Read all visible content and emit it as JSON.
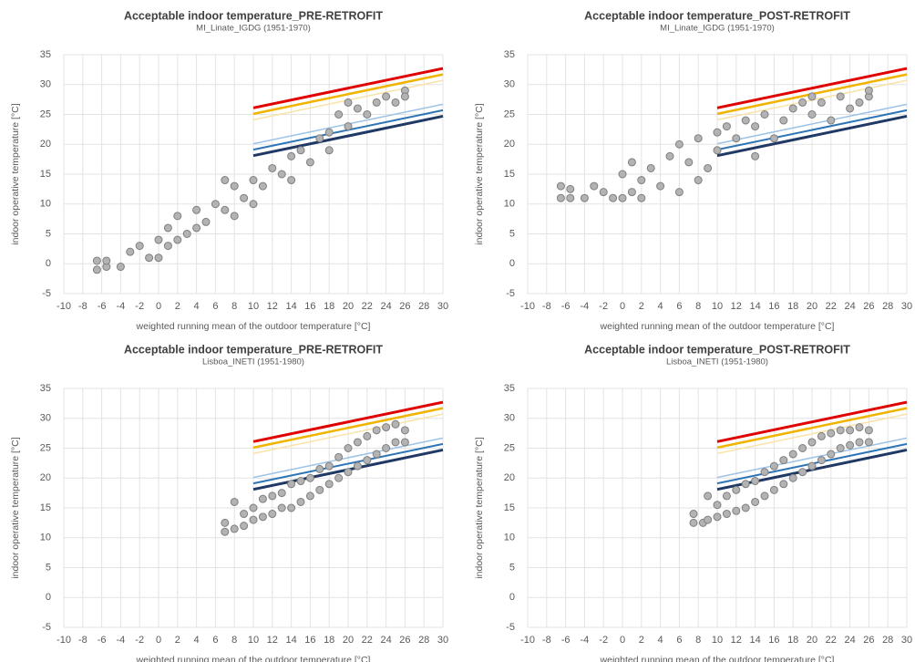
{
  "chart_data": [
    {
      "type": "scatter",
      "title": "Acceptable indoor temperature_PRE-RETROFIT",
      "subtitle": "MI_Linate_IGDG (1951-1970)",
      "x_label": "weighted running mean of the outdoor temperature [°C]",
      "y_label": "indoor operative temperature [°C]",
      "xlim": [
        -10,
        30
      ],
      "ylim": [
        -5,
        35
      ],
      "xticks": [
        -10,
        -8,
        -6,
        -4,
        -2,
        0,
        2,
        4,
        6,
        8,
        10,
        12,
        14,
        16,
        18,
        20,
        22,
        24,
        26,
        28,
        30
      ],
      "yticks": [
        -5,
        0,
        5,
        10,
        15,
        20,
        25,
        30,
        35
      ],
      "grid": true,
      "points": {
        "color": "#b3b3b3",
        "x": [
          -6.5,
          -6.5,
          -5.5,
          -5.5,
          -4,
          -3,
          -2,
          -1,
          0,
          0,
          1,
          1,
          2,
          2,
          3,
          4,
          4,
          5,
          6,
          7,
          7,
          8,
          8,
          9,
          10,
          10,
          11,
          12,
          13,
          14,
          14,
          15,
          16,
          17,
          18,
          18,
          19,
          20,
          20,
          21,
          22,
          23,
          24,
          25,
          26,
          26
        ],
        "values": [
          -1,
          0.5,
          -0.5,
          0.5,
          -0.5,
          2,
          3,
          1,
          4,
          1,
          6,
          3,
          8,
          4,
          5,
          9,
          6,
          7,
          10,
          14,
          9,
          13,
          8,
          11,
          14,
          10,
          13,
          16,
          15,
          18,
          14,
          19,
          17,
          21,
          22,
          19,
          25,
          27,
          23,
          26,
          25,
          27,
          28,
          27,
          29,
          28
        ]
      },
      "lines": [
        {
          "color": "#f8e3a8",
          "x": [
            10,
            30
          ],
          "values": [
            24.1,
            30.7
          ]
        },
        {
          "color": "#f0b400",
          "x": [
            10,
            30
          ],
          "values": [
            25.1,
            31.7
          ]
        },
        {
          "color": "#e00000",
          "x": [
            10,
            30
          ],
          "values": [
            26.1,
            32.7
          ]
        },
        {
          "color": "#9dc3e6",
          "x": [
            10,
            30
          ],
          "values": [
            20.1,
            26.7
          ]
        },
        {
          "color": "#2e75b6",
          "x": [
            10,
            30
          ],
          "values": [
            19.1,
            25.7
          ]
        },
        {
          "color": "#1f3864",
          "x": [
            10,
            30
          ],
          "values": [
            18.1,
            24.7
          ]
        }
      ]
    },
    {
      "type": "scatter",
      "title": "Acceptable indoor temperature_POST-RETROFIT",
      "subtitle": "MI_Linate_IGDG (1951-1970)",
      "x_label": "weighted running mean of the outdoor temperature [°C]",
      "y_label": "indoor operative temperature [°C]",
      "xlim": [
        -10,
        30
      ],
      "ylim": [
        -5,
        35
      ],
      "xticks": [
        -10,
        -8,
        -6,
        -4,
        -2,
        0,
        2,
        4,
        6,
        8,
        10,
        12,
        14,
        16,
        18,
        20,
        22,
        24,
        26,
        28,
        30
      ],
      "yticks": [
        -5,
        0,
        5,
        10,
        15,
        20,
        25,
        30,
        35
      ],
      "grid": true,
      "points": {
        "color": "#b3b3b3",
        "x": [
          -6.5,
          -6.5,
          -5.5,
          -5.5,
          -4,
          -3,
          -2,
          -1,
          0,
          0,
          1,
          1,
          2,
          2,
          3,
          4,
          5,
          6,
          6,
          7,
          8,
          8,
          9,
          10,
          10,
          11,
          12,
          13,
          14,
          14,
          15,
          16,
          17,
          18,
          19,
          20,
          20,
          21,
          22,
          23,
          24,
          25,
          26,
          26
        ],
        "values": [
          11,
          13,
          11,
          12.5,
          11,
          13,
          12,
          11,
          15,
          11,
          17,
          12,
          14,
          11,
          16,
          13,
          18,
          20,
          12,
          17,
          21,
          14,
          16,
          22,
          19,
          23,
          21,
          24,
          23,
          18,
          25,
          21,
          24,
          26,
          27,
          28,
          25,
          27,
          24,
          28,
          26,
          27,
          28,
          29
        ]
      },
      "lines": [
        {
          "color": "#f8e3a8",
          "x": [
            10,
            30
          ],
          "values": [
            24.1,
            30.7
          ]
        },
        {
          "color": "#f0b400",
          "x": [
            10,
            30
          ],
          "values": [
            25.1,
            31.7
          ]
        },
        {
          "color": "#e00000",
          "x": [
            10,
            30
          ],
          "values": [
            26.1,
            32.7
          ]
        },
        {
          "color": "#9dc3e6",
          "x": [
            10,
            30
          ],
          "values": [
            20.1,
            26.7
          ]
        },
        {
          "color": "#2e75b6",
          "x": [
            10,
            30
          ],
          "values": [
            19.1,
            25.7
          ]
        },
        {
          "color": "#1f3864",
          "x": [
            10,
            30
          ],
          "values": [
            18.1,
            24.7
          ]
        }
      ]
    },
    {
      "type": "scatter",
      "title": "Acceptable indoor temperature_PRE-RETROFIT",
      "subtitle": "Lisboa_INETI (1951-1980)",
      "x_label": "weighted running mean of the outdoor temperature [°C]",
      "y_label": "indoor operative temperature [°C]",
      "xlim": [
        -10,
        30
      ],
      "ylim": [
        -5,
        35
      ],
      "xticks": [
        -10,
        -8,
        -6,
        -4,
        -2,
        0,
        2,
        4,
        6,
        8,
        10,
        12,
        14,
        16,
        18,
        20,
        22,
        24,
        26,
        28,
        30
      ],
      "yticks": [
        -5,
        0,
        5,
        10,
        15,
        20,
        25,
        30,
        35
      ],
      "grid": true,
      "points": {
        "color": "#b3b3b3",
        "x": [
          7,
          7,
          8,
          8,
          9,
          9,
          10,
          10,
          11,
          11,
          12,
          12,
          13,
          13,
          14,
          14,
          15,
          15,
          16,
          16,
          17,
          17,
          18,
          18,
          19,
          19,
          20,
          20,
          21,
          21,
          22,
          22,
          23,
          23,
          24,
          24,
          25,
          25,
          26,
          26
        ],
        "values": [
          11,
          12.5,
          11.5,
          16,
          12,
          14,
          13,
          15,
          13.5,
          16.5,
          14,
          17,
          15,
          17.5,
          15,
          19,
          16,
          19.5,
          17,
          20,
          18,
          21.5,
          19,
          22,
          20,
          23.5,
          21,
          25,
          22,
          26,
          23,
          27,
          24,
          28,
          25,
          28.5,
          26,
          29,
          26,
          28
        ]
      },
      "lines": [
        {
          "color": "#f8e3a8",
          "x": [
            10,
            30
          ],
          "values": [
            24.1,
            30.7
          ]
        },
        {
          "color": "#f0b400",
          "x": [
            10,
            30
          ],
          "values": [
            25.1,
            31.7
          ]
        },
        {
          "color": "#e00000",
          "x": [
            10,
            30
          ],
          "values": [
            26.1,
            32.7
          ]
        },
        {
          "color": "#9dc3e6",
          "x": [
            10,
            30
          ],
          "values": [
            20.1,
            26.7
          ]
        },
        {
          "color": "#2e75b6",
          "x": [
            10,
            30
          ],
          "values": [
            19.1,
            25.7
          ]
        },
        {
          "color": "#1f3864",
          "x": [
            10,
            30
          ],
          "values": [
            18.1,
            24.7
          ]
        }
      ]
    },
    {
      "type": "scatter",
      "title": "Acceptable indoor temperature_POST-RETROFIT",
      "subtitle": "Lisboa_INETI (1951-1980)",
      "x_label": "weighted running mean of the outdoor temperature [°C]",
      "y_label": "indoor operative temperature [°C]",
      "xlim": [
        -10,
        30
      ],
      "ylim": [
        -5,
        35
      ],
      "xticks": [
        -10,
        -8,
        -6,
        -4,
        -2,
        0,
        2,
        4,
        6,
        8,
        10,
        12,
        14,
        16,
        18,
        20,
        22,
        24,
        26,
        28,
        30
      ],
      "yticks": [
        -5,
        0,
        5,
        10,
        15,
        20,
        25,
        30,
        35
      ],
      "grid": true,
      "points": {
        "color": "#b3b3b3",
        "x": [
          7.5,
          7.5,
          8.5,
          9,
          9,
          10,
          10,
          11,
          11,
          12,
          12,
          13,
          13,
          14,
          14,
          15,
          15,
          16,
          16,
          17,
          17,
          18,
          18,
          19,
          19,
          20,
          20,
          21,
          21,
          22,
          22,
          23,
          23,
          24,
          24,
          25,
          25,
          26,
          26
        ],
        "values": [
          12.5,
          14,
          12.5,
          13,
          17,
          13.5,
          15.5,
          14,
          17,
          14.5,
          18,
          15,
          19,
          16,
          19.5,
          17,
          21,
          18,
          22,
          19,
          23,
          20,
          24,
          21,
          25,
          22,
          26,
          23,
          27,
          24,
          27.5,
          25,
          28,
          25.5,
          28,
          26,
          28.5,
          26,
          28
        ]
      },
      "lines": [
        {
          "color": "#f8e3a8",
          "x": [
            10,
            30
          ],
          "values": [
            24.1,
            30.7
          ]
        },
        {
          "color": "#f0b400",
          "x": [
            10,
            30
          ],
          "values": [
            25.1,
            31.7
          ]
        },
        {
          "color": "#e00000",
          "x": [
            10,
            30
          ],
          "values": [
            26.1,
            32.7
          ]
        },
        {
          "color": "#9dc3e6",
          "x": [
            10,
            30
          ],
          "values": [
            20.1,
            26.7
          ]
        },
        {
          "color": "#2e75b6",
          "x": [
            10,
            30
          ],
          "values": [
            19.1,
            25.7
          ]
        },
        {
          "color": "#1f3864",
          "x": [
            10,
            30
          ],
          "values": [
            18.1,
            24.7
          ]
        }
      ]
    }
  ]
}
